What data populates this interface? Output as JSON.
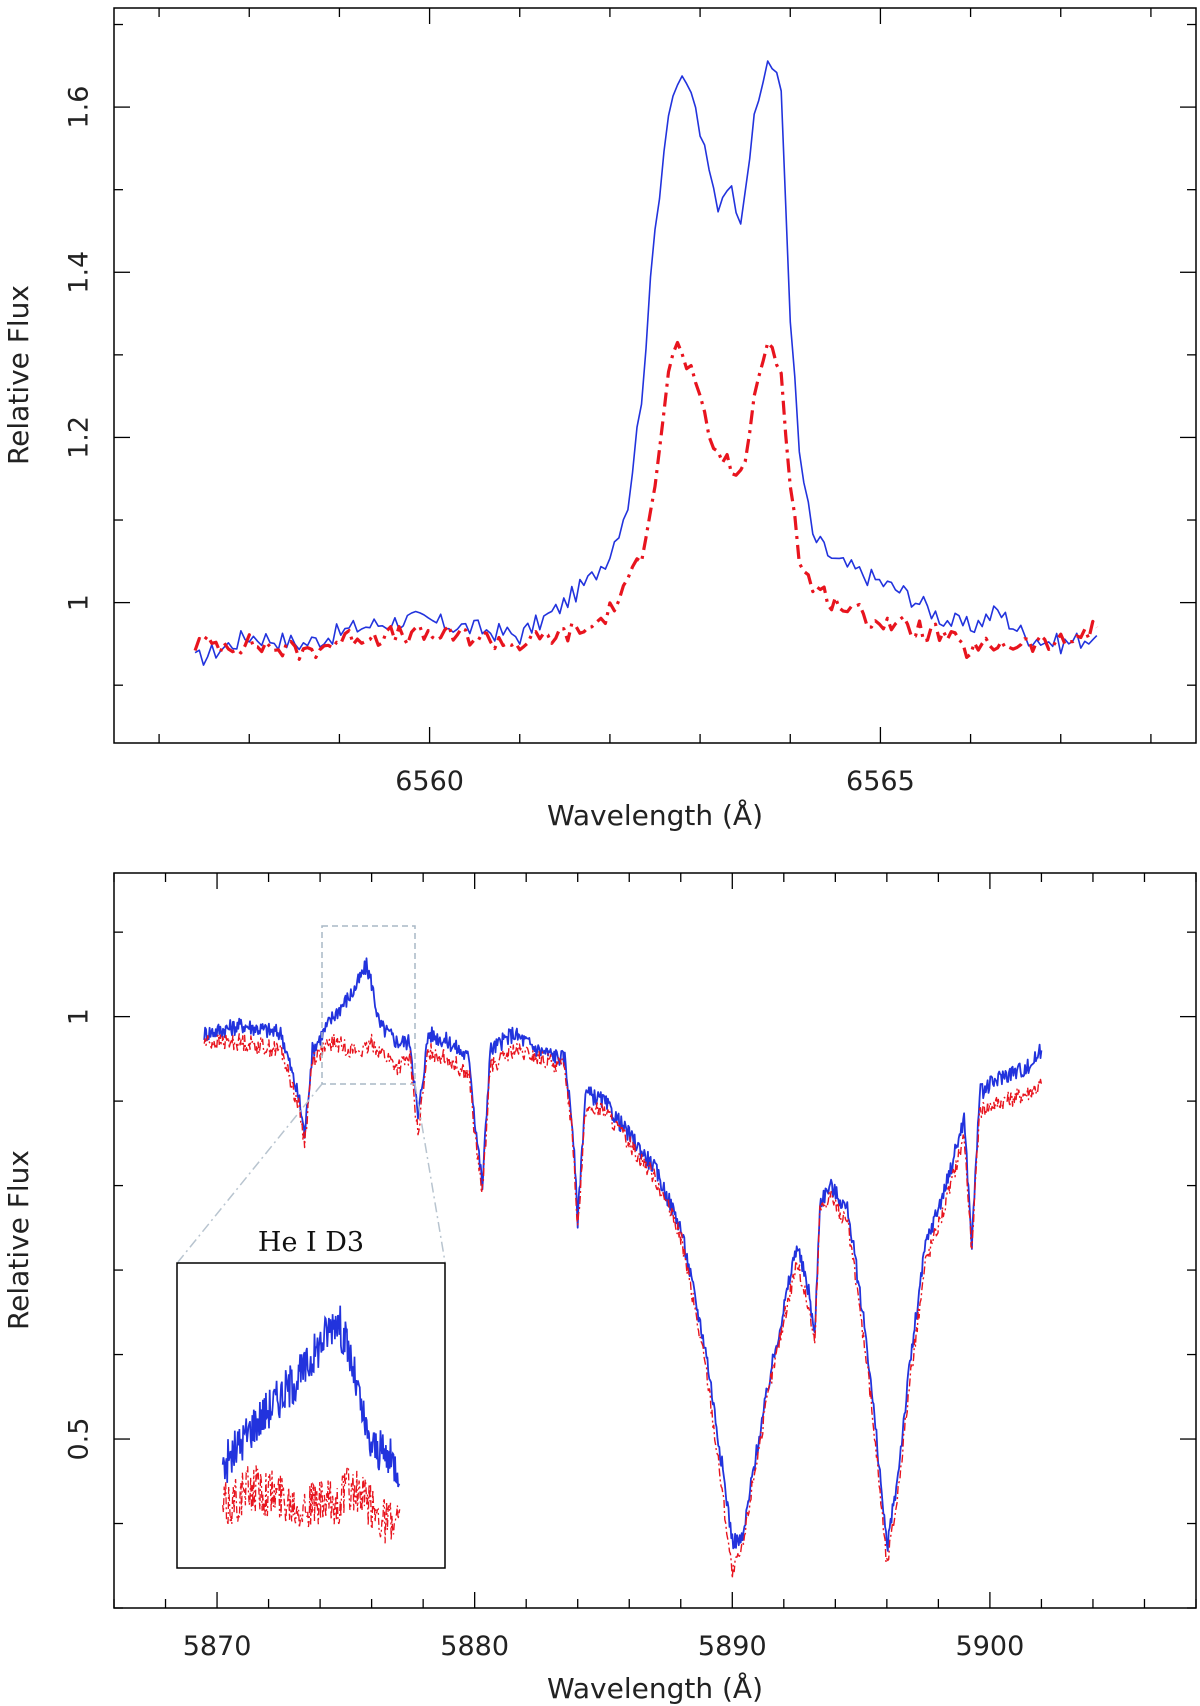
{
  "chart_data": [
    {
      "type": "line",
      "title": "",
      "xlabel": "Wavelength (Å)",
      "ylabel": "Relative Flux",
      "xlim": [
        6556.5,
        6568.5
      ],
      "ylim": [
        0.83,
        1.72
      ],
      "x_major_ticks": [
        6560,
        6565
      ],
      "x_tick_labels": [
        "6560",
        "6565"
      ],
      "y_major_ticks": [
        1.0,
        1.2,
        1.4,
        1.6
      ],
      "y_tick_labels": [
        "1",
        "1.2",
        "1.4",
        "1.6"
      ],
      "grid": false,
      "series": [
        {
          "name": "blue solid",
          "color": "#2233dd",
          "style": "solid",
          "points": [
            [
              6557.4,
              0.93
            ],
            [
              6558.0,
              0.96
            ],
            [
              6558.6,
              0.95
            ],
            [
              6559.2,
              0.97
            ],
            [
              6559.8,
              0.98
            ],
            [
              6560.4,
              0.97
            ],
            [
              6561.0,
              0.96
            ],
            [
              6561.4,
              0.99
            ],
            [
              6561.8,
              1.03
            ],
            [
              6562.0,
              1.06
            ],
            [
              6562.2,
              1.12
            ],
            [
              6562.35,
              1.25
            ],
            [
              6562.5,
              1.45
            ],
            [
              6562.65,
              1.6
            ],
            [
              6562.75,
              1.63
            ],
            [
              6562.9,
              1.62
            ],
            [
              6563.1,
              1.52
            ],
            [
              6563.2,
              1.48
            ],
            [
              6563.3,
              1.51
            ],
            [
              6563.45,
              1.47
            ],
            [
              6563.6,
              1.58
            ],
            [
              6563.75,
              1.66
            ],
            [
              6563.9,
              1.62
            ],
            [
              6564.0,
              1.35
            ],
            [
              6564.1,
              1.18
            ],
            [
              6564.25,
              1.08
            ],
            [
              6564.5,
              1.05
            ],
            [
              6564.9,
              1.03
            ],
            [
              6565.3,
              1.01
            ],
            [
              6565.7,
              0.98
            ],
            [
              6566.0,
              0.97
            ],
            [
              6566.3,
              0.99
            ],
            [
              6566.6,
              0.96
            ],
            [
              6567.0,
              0.95
            ],
            [
              6567.4,
              0.96
            ]
          ]
        },
        {
          "name": "red dash-dot",
          "color": "#e8141e",
          "style": "dashdot",
          "points": [
            [
              6557.4,
              0.95
            ],
            [
              6558.0,
              0.95
            ],
            [
              6558.6,
              0.94
            ],
            [
              6559.2,
              0.96
            ],
            [
              6559.8,
              0.96
            ],
            [
              6560.4,
              0.96
            ],
            [
              6561.0,
              0.95
            ],
            [
              6561.4,
              0.96
            ],
            [
              6561.8,
              0.97
            ],
            [
              6562.0,
              0.99
            ],
            [
              6562.2,
              1.02
            ],
            [
              6562.35,
              1.06
            ],
            [
              6562.5,
              1.15
            ],
            [
              6562.65,
              1.28
            ],
            [
              6562.75,
              1.31
            ],
            [
              6562.9,
              1.28
            ],
            [
              6563.1,
              1.2
            ],
            [
              6563.2,
              1.18
            ],
            [
              6563.3,
              1.17
            ],
            [
              6563.45,
              1.15
            ],
            [
              6563.6,
              1.24
            ],
            [
              6563.75,
              1.32
            ],
            [
              6563.9,
              1.28
            ],
            [
              6564.0,
              1.15
            ],
            [
              6564.1,
              1.05
            ],
            [
              6564.25,
              1.02
            ],
            [
              6564.5,
              1.0
            ],
            [
              6564.9,
              0.98
            ],
            [
              6565.3,
              0.97
            ],
            [
              6565.7,
              0.96
            ],
            [
              6566.0,
              0.94
            ],
            [
              6566.3,
              0.95
            ],
            [
              6566.6,
              0.95
            ],
            [
              6567.0,
              0.95
            ],
            [
              6567.4,
              0.97
            ]
          ]
        }
      ]
    },
    {
      "type": "line",
      "title": "",
      "xlabel": "Wavelength (Å)",
      "ylabel": "Relative Flux",
      "xlim": [
        5866,
        5908
      ],
      "ylim": [
        0.3,
        1.17
      ],
      "x_major_ticks": [
        5870,
        5880,
        5890,
        5900
      ],
      "x_tick_labels": [
        "5870",
        "5880",
        "5890",
        "5900"
      ],
      "y_major_ticks": [
        0.5,
        1.0
      ],
      "y_tick_labels": [
        "0.5",
        "1"
      ],
      "grid": false,
      "series": [
        {
          "name": "blue solid",
          "color": "#2233dd",
          "style": "solid",
          "points": [
            [
              5869.5,
              0.98
            ],
            [
              5871.0,
              0.99
            ],
            [
              5872.5,
              0.98
            ],
            [
              5873.2,
              0.9
            ],
            [
              5873.4,
              0.86
            ],
            [
              5873.7,
              0.96
            ],
            [
              5874.5,
              1.0
            ],
            [
              5875.3,
              1.03
            ],
            [
              5875.8,
              1.06
            ],
            [
              5876.0,
              1.04
            ],
            [
              5876.3,
              0.99
            ],
            [
              5877.0,
              0.97
            ],
            [
              5877.5,
              0.97
            ],
            [
              5877.8,
              0.88
            ],
            [
              5878.2,
              0.98
            ],
            [
              5879.0,
              0.97
            ],
            [
              5879.8,
              0.95
            ],
            [
              5880.0,
              0.88
            ],
            [
              5880.3,
              0.8
            ],
            [
              5880.6,
              0.96
            ],
            [
              5881.5,
              0.98
            ],
            [
              5882.5,
              0.96
            ],
            [
              5883.5,
              0.95
            ],
            [
              5883.8,
              0.87
            ],
            [
              5884.0,
              0.76
            ],
            [
              5884.3,
              0.91
            ],
            [
              5885.0,
              0.9
            ],
            [
              5886.0,
              0.86
            ],
            [
              5887.0,
              0.82
            ],
            [
              5888.0,
              0.75
            ],
            [
              5889.0,
              0.6
            ],
            [
              5889.6,
              0.47
            ],
            [
              5890.0,
              0.38
            ],
            [
              5890.4,
              0.38
            ],
            [
              5890.8,
              0.46
            ],
            [
              5891.5,
              0.58
            ],
            [
              5892.5,
              0.73
            ],
            [
              5893.0,
              0.67
            ],
            [
              5893.2,
              0.62
            ],
            [
              5893.4,
              0.78
            ],
            [
              5893.8,
              0.8
            ],
            [
              5894.5,
              0.77
            ],
            [
              5895.2,
              0.62
            ],
            [
              5895.7,
              0.47
            ],
            [
              5896.0,
              0.37
            ],
            [
              5896.4,
              0.45
            ],
            [
              5896.9,
              0.59
            ],
            [
              5897.5,
              0.73
            ],
            [
              5898.3,
              0.8
            ],
            [
              5899.0,
              0.88
            ],
            [
              5899.3,
              0.73
            ],
            [
              5899.6,
              0.91
            ],
            [
              5900.5,
              0.93
            ],
            [
              5901.5,
              0.94
            ],
            [
              5902.0,
              0.96
            ]
          ]
        },
        {
          "name": "red dash-dot",
          "color": "#e8141e",
          "style": "dashdot",
          "points": [
            [
              5869.5,
              0.97
            ],
            [
              5871.0,
              0.97
            ],
            [
              5872.5,
              0.96
            ],
            [
              5873.2,
              0.89
            ],
            [
              5873.4,
              0.85
            ],
            [
              5873.7,
              0.95
            ],
            [
              5874.5,
              0.97
            ],
            [
              5875.3,
              0.96
            ],
            [
              5875.8,
              0.96
            ],
            [
              5876.0,
              0.97
            ],
            [
              5876.3,
              0.96
            ],
            [
              5877.0,
              0.94
            ],
            [
              5877.5,
              0.95
            ],
            [
              5877.8,
              0.86
            ],
            [
              5878.2,
              0.96
            ],
            [
              5879.0,
              0.95
            ],
            [
              5879.8,
              0.93
            ],
            [
              5880.0,
              0.86
            ],
            [
              5880.3,
              0.79
            ],
            [
              5880.6,
              0.94
            ],
            [
              5881.5,
              0.96
            ],
            [
              5882.5,
              0.95
            ],
            [
              5883.5,
              0.94
            ],
            [
              5883.8,
              0.86
            ],
            [
              5884.0,
              0.75
            ],
            [
              5884.3,
              0.89
            ],
            [
              5885.0,
              0.89
            ],
            [
              5886.0,
              0.85
            ],
            [
              5887.0,
              0.81
            ],
            [
              5888.0,
              0.74
            ],
            [
              5889.0,
              0.58
            ],
            [
              5889.6,
              0.44
            ],
            [
              5890.0,
              0.34
            ],
            [
              5890.4,
              0.37
            ],
            [
              5890.8,
              0.45
            ],
            [
              5891.5,
              0.57
            ],
            [
              5892.5,
              0.71
            ],
            [
              5893.0,
              0.65
            ],
            [
              5893.2,
              0.61
            ],
            [
              5893.4,
              0.77
            ],
            [
              5893.8,
              0.79
            ],
            [
              5894.5,
              0.75
            ],
            [
              5895.2,
              0.6
            ],
            [
              5895.7,
              0.45
            ],
            [
              5896.0,
              0.35
            ],
            [
              5896.4,
              0.43
            ],
            [
              5896.9,
              0.57
            ],
            [
              5897.5,
              0.71
            ],
            [
              5898.3,
              0.78
            ],
            [
              5899.0,
              0.86
            ],
            [
              5899.3,
              0.72
            ],
            [
              5899.6,
              0.89
            ],
            [
              5900.5,
              0.9
            ],
            [
              5901.5,
              0.91
            ],
            [
              5902.0,
              0.92
            ]
          ]
        }
      ],
      "inset": {
        "title": "He I D3",
        "xlim": [
          5874.0,
          5876.8
        ],
        "ylim": [
          0.93,
          1.08
        ]
      }
    }
  ]
}
